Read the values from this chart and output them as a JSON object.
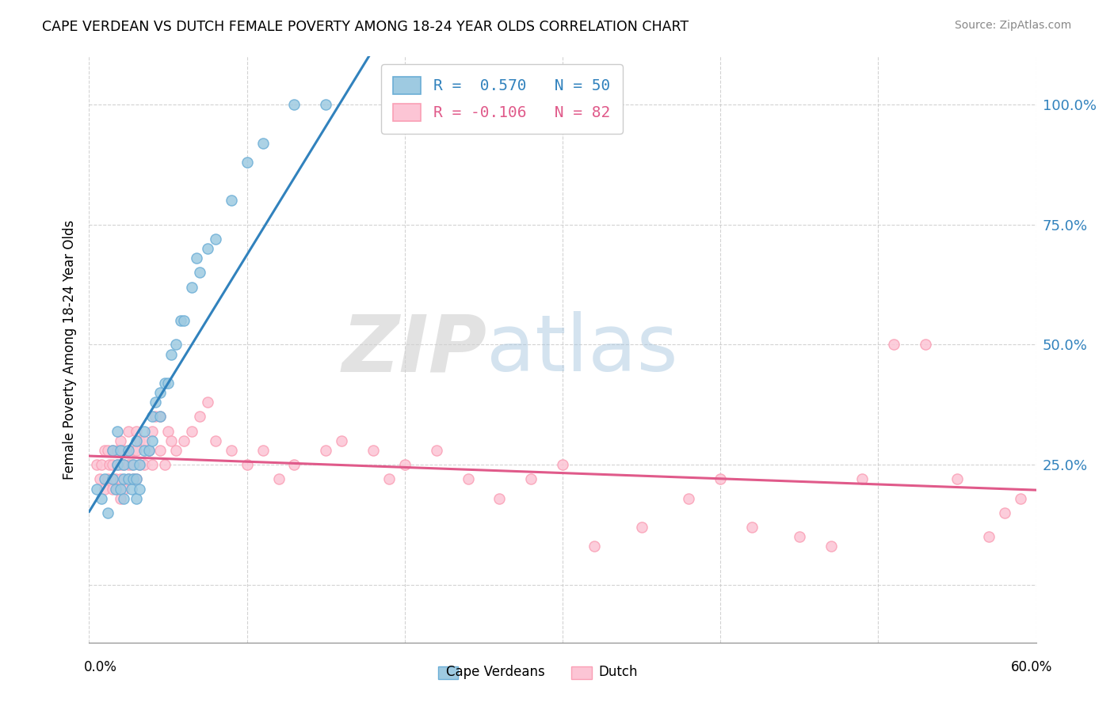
{
  "title": "CAPE VERDEAN VS DUTCH FEMALE POVERTY AMONG 18-24 YEAR OLDS CORRELATION CHART",
  "source": "Source: ZipAtlas.com",
  "ylabel": "Female Poverty Among 18-24 Year Olds",
  "yticks": [
    0.0,
    0.25,
    0.5,
    0.75,
    1.0
  ],
  "ytick_labels": [
    "",
    "25.0%",
    "50.0%",
    "75.0%",
    "100.0%"
  ],
  "xlim": [
    0.0,
    0.6
  ],
  "ylim": [
    -0.12,
    1.1
  ],
  "legend_r1": "R =  0.570   N = 50",
  "legend_r2": "R = -0.106   N = 82",
  "cv_color": "#6baed6",
  "cv_color_fill": "#9ecae1",
  "dutch_color": "#fa9fb5",
  "dutch_color_fill": "#fcc5d5",
  "line_cv_color": "#3182bd",
  "line_dutch_color": "#e05a8a",
  "watermark_zip": "ZIP",
  "watermark_atlas": "atlas",
  "cv_x": [
    0.005,
    0.008,
    0.01,
    0.012,
    0.015,
    0.015,
    0.017,
    0.018,
    0.018,
    0.02,
    0.02,
    0.022,
    0.022,
    0.022,
    0.025,
    0.025,
    0.027,
    0.028,
    0.028,
    0.03,
    0.03,
    0.03,
    0.032,
    0.032,
    0.035,
    0.035,
    0.038,
    0.04,
    0.04,
    0.042,
    0.045,
    0.045,
    0.048,
    0.05,
    0.052,
    0.055,
    0.058,
    0.06,
    0.065,
    0.068,
    0.07,
    0.075,
    0.08,
    0.09,
    0.1,
    0.11,
    0.13,
    0.15,
    0.195,
    0.22
  ],
  "cv_y": [
    0.2,
    0.18,
    0.22,
    0.15,
    0.22,
    0.28,
    0.2,
    0.25,
    0.32,
    0.2,
    0.28,
    0.22,
    0.25,
    0.18,
    0.22,
    0.28,
    0.2,
    0.25,
    0.22,
    0.18,
    0.22,
    0.3,
    0.25,
    0.2,
    0.28,
    0.32,
    0.28,
    0.35,
    0.3,
    0.38,
    0.35,
    0.4,
    0.42,
    0.42,
    0.48,
    0.5,
    0.55,
    0.55,
    0.62,
    0.68,
    0.65,
    0.7,
    0.72,
    0.8,
    0.88,
    0.92,
    1.0,
    1.0,
    1.0,
    1.0
  ],
  "dutch_x": [
    0.005,
    0.007,
    0.008,
    0.01,
    0.01,
    0.012,
    0.012,
    0.013,
    0.015,
    0.015,
    0.015,
    0.015,
    0.017,
    0.018,
    0.018,
    0.018,
    0.02,
    0.02,
    0.02,
    0.02,
    0.02,
    0.022,
    0.022,
    0.022,
    0.025,
    0.025,
    0.025,
    0.025,
    0.027,
    0.028,
    0.028,
    0.03,
    0.03,
    0.03,
    0.032,
    0.032,
    0.035,
    0.035,
    0.038,
    0.04,
    0.04,
    0.042,
    0.045,
    0.045,
    0.048,
    0.05,
    0.052,
    0.055,
    0.06,
    0.065,
    0.07,
    0.075,
    0.08,
    0.09,
    0.1,
    0.11,
    0.12,
    0.13,
    0.15,
    0.16,
    0.18,
    0.19,
    0.2,
    0.22,
    0.24,
    0.26,
    0.28,
    0.3,
    0.32,
    0.35,
    0.38,
    0.4,
    0.42,
    0.45,
    0.47,
    0.49,
    0.51,
    0.53,
    0.55,
    0.57,
    0.58,
    0.59
  ],
  "dutch_y": [
    0.25,
    0.22,
    0.25,
    0.2,
    0.28,
    0.22,
    0.28,
    0.25,
    0.2,
    0.22,
    0.25,
    0.28,
    0.22,
    0.2,
    0.25,
    0.28,
    0.18,
    0.22,
    0.25,
    0.28,
    0.3,
    0.2,
    0.25,
    0.28,
    0.22,
    0.25,
    0.28,
    0.32,
    0.25,
    0.22,
    0.28,
    0.22,
    0.28,
    0.32,
    0.25,
    0.3,
    0.25,
    0.3,
    0.28,
    0.25,
    0.32,
    0.35,
    0.28,
    0.35,
    0.25,
    0.32,
    0.3,
    0.28,
    0.3,
    0.32,
    0.35,
    0.38,
    0.3,
    0.28,
    0.25,
    0.28,
    0.22,
    0.25,
    0.28,
    0.3,
    0.28,
    0.22,
    0.25,
    0.28,
    0.22,
    0.18,
    0.22,
    0.25,
    0.08,
    0.12,
    0.18,
    0.22,
    0.12,
    0.1,
    0.08,
    0.22,
    0.5,
    0.5,
    0.22,
    0.1,
    0.15,
    0.18
  ]
}
